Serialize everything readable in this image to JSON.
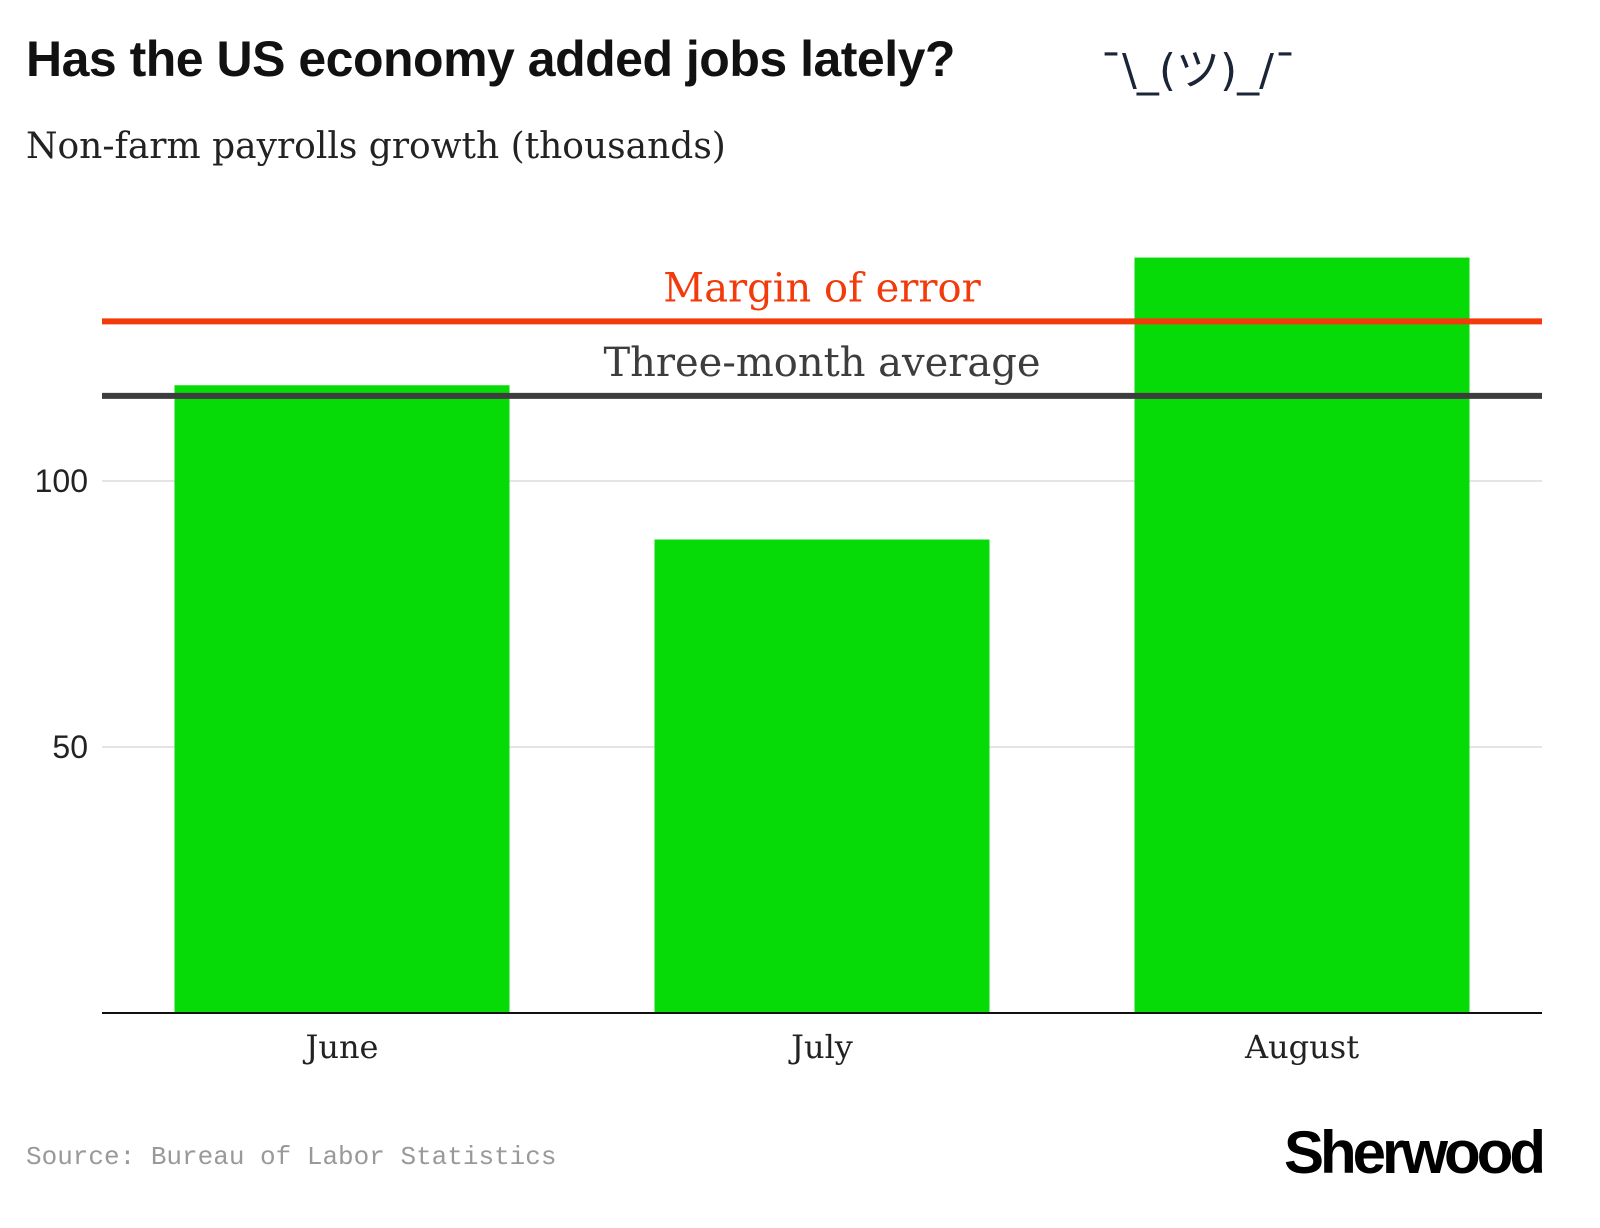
{
  "title": "Has the US economy added jobs lately?",
  "shrug": "¯\\_(ツ)_/¯",
  "subtitle": "Non-farm payrolls growth (thousands)",
  "source": "Source: Bureau of Labor Statistics",
  "logo": "Sherwood",
  "chart_data": {
    "type": "bar",
    "categories": [
      "June",
      "July",
      "August"
    ],
    "values": [
      118,
      89,
      142
    ],
    "ylim": [
      0,
      142
    ],
    "yticks": [
      50,
      100
    ],
    "grid": true,
    "bar_color": "#07db07",
    "reference_lines": [
      {
        "label": "Margin of error",
        "value": 130,
        "color": "#f23a0b"
      },
      {
        "label": "Three-month average",
        "value": 116,
        "color": "#3d3d3d"
      }
    ]
  }
}
